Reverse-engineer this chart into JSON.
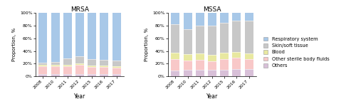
{
  "years": [
    "2008",
    "2010",
    "2011",
    "2012",
    "2015",
    "2016",
    "2017"
  ],
  "mrsa": {
    "respiratory": [
      78,
      77,
      72,
      68,
      73,
      74,
      75
    ],
    "skin_soft": [
      4,
      5,
      10,
      12,
      10,
      9,
      9
    ],
    "blood": [
      2,
      2,
      2,
      2,
      2,
      2,
      2
    ],
    "other_sterile": [
      12,
      12,
      12,
      14,
      12,
      12,
      11
    ],
    "others": [
      4,
      4,
      4,
      4,
      3,
      3,
      3
    ]
  },
  "mssa": {
    "respiratory": [
      18,
      25,
      20,
      20,
      15,
      12,
      12
    ],
    "skin_soft": [
      45,
      40,
      44,
      46,
      48,
      50,
      52
    ],
    "blood": [
      10,
      10,
      10,
      10,
      10,
      9,
      9
    ],
    "other_sterile": [
      18,
      15,
      16,
      14,
      17,
      18,
      16
    ],
    "others": [
      9,
      10,
      10,
      10,
      10,
      11,
      11
    ]
  },
  "colors": {
    "respiratory": "#A8C8E8",
    "skin_soft": "#C8C8C8",
    "blood": "#E8E8A0",
    "other_sterile": "#F8C8C8",
    "others": "#D8C0D8"
  },
  "legend_labels": [
    "Respiratory system",
    "Skin/soft tissue",
    "Blood",
    "Other sterile body fluids",
    "Others"
  ],
  "title_mrsa": "MRSA",
  "title_mssa": "MSSA",
  "ylabel": "Proportion, %",
  "xlabel": "Year"
}
